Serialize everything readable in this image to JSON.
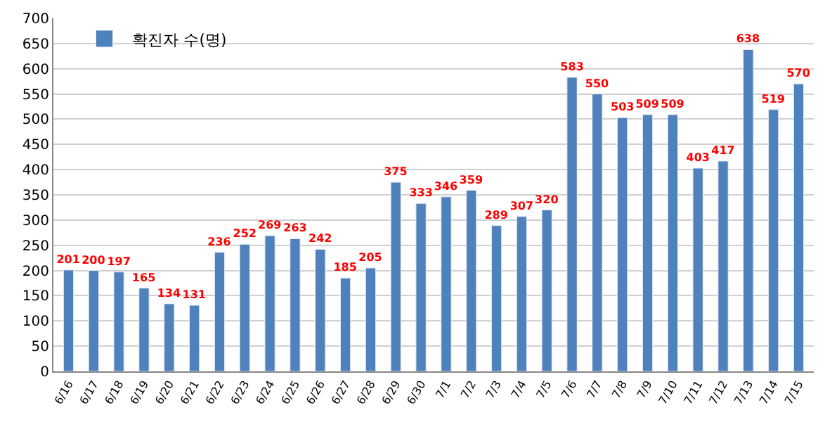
{
  "chart_data": {
    "type": "bar",
    "categories": [
      "6/16",
      "6/17",
      "6/18",
      "6/19",
      "6/20",
      "6/21",
      "6/22",
      "6/23",
      "6/24",
      "6/25",
      "6/26",
      "6/27",
      "6/28",
      "6/29",
      "6/30",
      "7/1",
      "7/2",
      "7/3",
      "7/4",
      "7/5",
      "7/6",
      "7/7",
      "7/8",
      "7/9",
      "7/10",
      "7/11",
      "7/12",
      "7/13",
      "7/14",
      "7/15"
    ],
    "series": [
      {
        "name": "확진자 수(명)",
        "color": "#4f81bd",
        "values": [
          201,
          200,
          197,
          165,
          134,
          131,
          236,
          252,
          269,
          263,
          242,
          185,
          205,
          375,
          333,
          346,
          359,
          289,
          307,
          320,
          583,
          550,
          503,
          509,
          509,
          403,
          417,
          638,
          519,
          570
        ]
      }
    ],
    "ylim": [
      0,
      700
    ],
    "yticks": [
      0,
      50,
      100,
      150,
      200,
      250,
      300,
      350,
      400,
      450,
      500,
      550,
      600,
      650,
      700
    ],
    "grid": "y",
    "legend": "top left",
    "data_labels": true
  }
}
